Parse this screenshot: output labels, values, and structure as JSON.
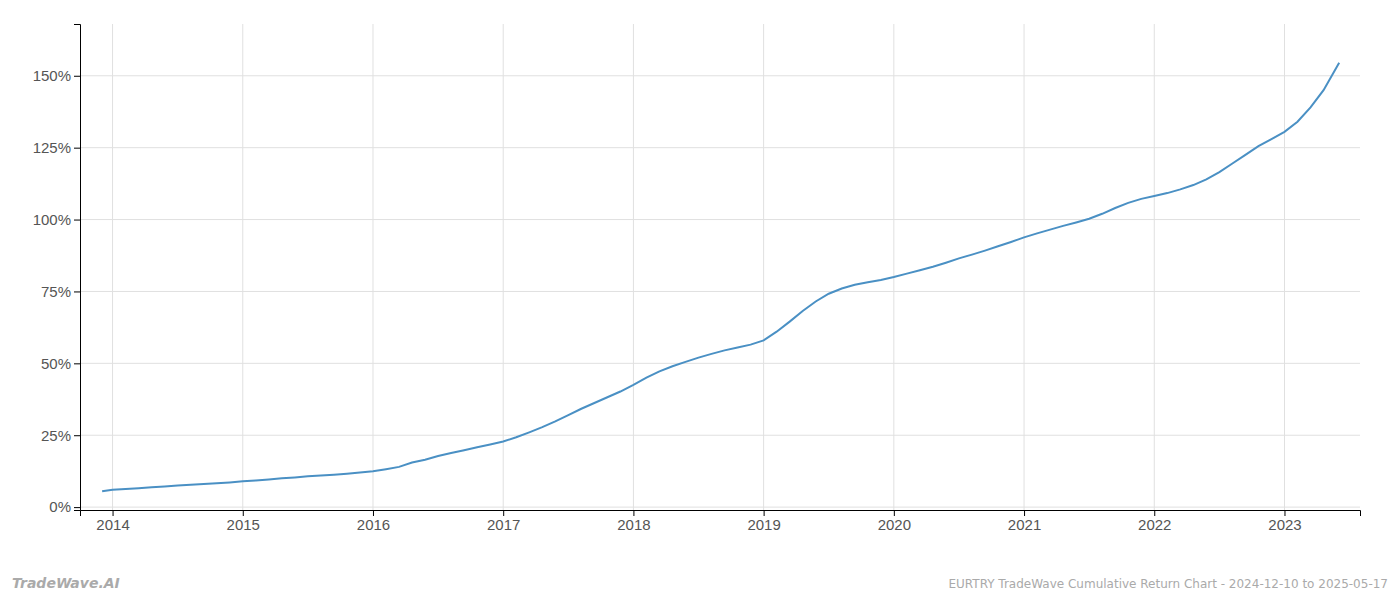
{
  "chart_data": {
    "type": "line",
    "title": "EURTRY TradeWave Cumulative Return Chart - 2024-12-10 to 2025-05-17",
    "annotations": [
      "TradeWave.AI"
    ],
    "color": "#4a90c4",
    "grid": true,
    "xlim": [
      2013.75,
      2023.58
    ],
    "xticks": [
      2014,
      2015,
      2016,
      2017,
      2018,
      2019,
      2020,
      2021,
      2022,
      2023
    ],
    "ylim": [
      -0.01,
      1.68
    ],
    "yticks": [
      {
        "value": 0.0,
        "label": "0%"
      },
      {
        "value": 0.25,
        "label": "25%"
      },
      {
        "value": 0.5,
        "label": "50%"
      },
      {
        "value": 0.75,
        "label": "75%"
      },
      {
        "value": 1.0,
        "label": "100%"
      },
      {
        "value": 1.25,
        "label": "125%"
      },
      {
        "value": 1.5,
        "label": "150%"
      }
    ],
    "x": [
      2013.92,
      2014.0,
      2014.1,
      2014.2,
      2014.3,
      2014.4,
      2014.5,
      2014.6,
      2014.7,
      2014.8,
      2014.9,
      2015.0,
      2015.1,
      2015.2,
      2015.3,
      2015.4,
      2015.5,
      2015.6,
      2015.7,
      2015.8,
      2015.9,
      2016.0,
      2016.1,
      2016.2,
      2016.3,
      2016.4,
      2016.5,
      2016.6,
      2016.7,
      2016.8,
      2016.9,
      2017.0,
      2017.1,
      2017.2,
      2017.3,
      2017.4,
      2017.5,
      2017.6,
      2017.7,
      2017.8,
      2017.9,
      2018.0,
      2018.1,
      2018.2,
      2018.3,
      2018.4,
      2018.5,
      2018.6,
      2018.7,
      2018.8,
      2018.9,
      2019.0,
      2019.1,
      2019.2,
      2019.3,
      2019.4,
      2019.5,
      2019.6,
      2019.7,
      2019.8,
      2019.9,
      2020.0,
      2020.1,
      2020.2,
      2020.3,
      2020.4,
      2020.5,
      2020.6,
      2020.7,
      2020.8,
      2020.9,
      2021.0,
      2021.1,
      2021.2,
      2021.3,
      2021.4,
      2021.5,
      2021.6,
      2021.7,
      2021.8,
      2021.9,
      2022.0,
      2022.1,
      2022.2,
      2022.3,
      2022.4,
      2022.5,
      2022.6,
      2022.7,
      2022.8,
      2022.9,
      2023.0,
      2023.1,
      2023.2,
      2023.3,
      2023.42
    ],
    "values": [
      0.055,
      0.06,
      0.063,
      0.066,
      0.069,
      0.072,
      0.075,
      0.078,
      0.08,
      0.083,
      0.086,
      0.09,
      0.093,
      0.096,
      0.1,
      0.103,
      0.107,
      0.11,
      0.113,
      0.116,
      0.12,
      0.125,
      0.132,
      0.14,
      0.155,
      0.165,
      0.178,
      0.188,
      0.198,
      0.208,
      0.218,
      0.228,
      0.243,
      0.26,
      0.278,
      0.298,
      0.32,
      0.342,
      0.362,
      0.382,
      0.402,
      0.425,
      0.45,
      0.472,
      0.49,
      0.505,
      0.52,
      0.533,
      0.545,
      0.555,
      0.565,
      0.58,
      0.61,
      0.645,
      0.682,
      0.715,
      0.742,
      0.76,
      0.773,
      0.782,
      0.79,
      0.8,
      0.812,
      0.824,
      0.836,
      0.85,
      0.865,
      0.878,
      0.892,
      0.907,
      0.922,
      0.938,
      0.952,
      0.965,
      0.978,
      0.99,
      1.003,
      1.02,
      1.04,
      1.058,
      1.072,
      1.082,
      1.092,
      1.105,
      1.12,
      1.14,
      1.165,
      1.195,
      1.225,
      1.255,
      1.28,
      1.305,
      1.34,
      1.39,
      1.45,
      1.545
    ]
  }
}
